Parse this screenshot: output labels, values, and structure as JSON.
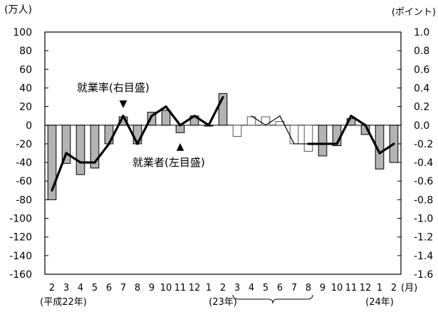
{
  "chart_data": {
    "type": "bar",
    "left_axis_unit": "(万人)",
    "right_axis_unit": "(ポイント)",
    "x_unit": "(月)",
    "left_ylim": [
      -160,
      100
    ],
    "left_ticks": [
      "100",
      "80",
      "60",
      "40",
      "20",
      "0",
      "-20",
      "-40",
      "-60",
      "-80",
      "-100",
      "-120",
      "-140",
      "-160"
    ],
    "right_ylim": [
      -1.6,
      1.0
    ],
    "right_ticks": [
      "1.0",
      "0.8",
      "0.6",
      "0.4",
      "0.2",
      "0.0",
      "-0.2",
      "-0.4",
      "-0.6",
      "-0.8",
      "-1.0",
      "-1.2",
      "-1.4",
      "-1.6"
    ],
    "categories": [
      "2",
      "3",
      "4",
      "5",
      "6",
      "7",
      "8",
      "9",
      "10",
      "11",
      "12",
      "1",
      "2",
      "3",
      "4",
      "5",
      "6",
      "7",
      "8",
      "9",
      "10",
      "11",
      "12",
      "1",
      "2"
    ],
    "year_labels": [
      {
        "text": "(平成22年)",
        "index": 0
      },
      {
        "text": "(23年)",
        "index": 12
      },
      {
        "text": "(24年)",
        "index": 23
      }
    ],
    "grid": false,
    "series": [
      {
        "name": "就業者",
        "axis": "left",
        "style": "bar",
        "values": [
          -80,
          -41,
          -53,
          -46,
          -20,
          9,
          -20,
          14,
          16,
          -8,
          10,
          -1,
          34,
          -12,
          9,
          9,
          4,
          -20,
          -28,
          -33,
          -22,
          7,
          -10,
          -47,
          -40
        ],
        "hollow_indices": [
          13,
          14,
          15,
          16,
          17,
          18
        ]
      },
      {
        "name": "就業率",
        "axis": "right",
        "style": "line",
        "values": [
          -0.7,
          -0.3,
          -0.4,
          -0.4,
          -0.2,
          0.1,
          -0.2,
          0.1,
          0.2,
          0.0,
          0.1,
          0.0,
          0.3,
          null,
          0.1,
          0.0,
          0.1,
          -0.2,
          -0.2,
          -0.2,
          -0.2,
          0.1,
          0.0,
          -0.3,
          -0.2
        ],
        "thin_indices": [
          13,
          14,
          15,
          16,
          17,
          18
        ]
      }
    ],
    "annotations": [
      {
        "text": "就業率(右目盛)",
        "marker": "▼",
        "target_index": 5
      },
      {
        "text": "就業者(左目盛)",
        "marker": "▲",
        "target_index": 9
      }
    ]
  }
}
